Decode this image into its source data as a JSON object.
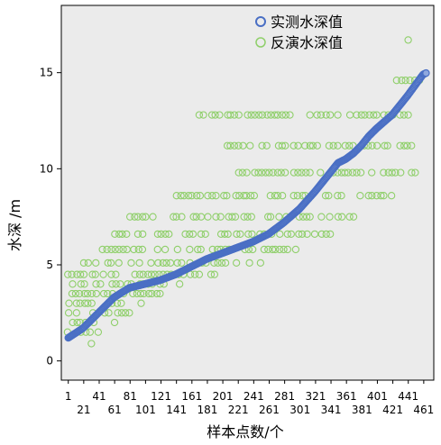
{
  "chart_data": {
    "type": "scatter",
    "xlabel": "样本点数/个",
    "ylabel": "水深 /m",
    "ylim": [
      -1,
      18.5
    ],
    "xlim": [
      -8,
      474
    ],
    "x_ticks_top": [
      "1",
      "41",
      "81",
      "121",
      "161",
      "201",
      "241",
      "281",
      "321",
      "361",
      "401",
      "441"
    ],
    "x_ticks_bottom": [
      "21",
      "61",
      "101",
      "141",
      "181",
      "221",
      "261",
      "301",
      "341",
      "381",
      "421",
      "461"
    ],
    "y_ticks": [
      "0",
      "5",
      "10",
      "15"
    ],
    "legend_position": "top-center",
    "grid": false,
    "series": [
      {
        "name": "实测水深值",
        "color": "#4a6fc4",
        "curve": [
          [
            1,
            1.2
          ],
          [
            20,
            1.7
          ],
          [
            40,
            2.5
          ],
          [
            60,
            3.3
          ],
          [
            80,
            3.8
          ],
          [
            100,
            4.0
          ],
          [
            120,
            4.2
          ],
          [
            140,
            4.5
          ],
          [
            160,
            4.9
          ],
          [
            180,
            5.3
          ],
          [
            200,
            5.6
          ],
          [
            220,
            5.9
          ],
          [
            240,
            6.2
          ],
          [
            260,
            6.6
          ],
          [
            280,
            7.2
          ],
          [
            300,
            7.9
          ],
          [
            320,
            8.8
          ],
          [
            340,
            9.8
          ],
          [
            350,
            10.3
          ],
          [
            360,
            10.5
          ],
          [
            370,
            10.8
          ],
          [
            380,
            11.2
          ],
          [
            390,
            11.7
          ],
          [
            400,
            12.1
          ],
          [
            420,
            12.8
          ],
          [
            440,
            13.8
          ],
          [
            460,
            14.9
          ],
          [
            465,
            15.0
          ]
        ]
      },
      {
        "name": "反演水深值",
        "color": "#8fcf6a",
        "levels": [
          [
            1.5,
            1,
            40
          ],
          [
            2.0,
            1,
            60
          ],
          [
            2.5,
            1,
            80
          ],
          [
            3.0,
            1,
            100
          ],
          [
            3.5,
            1,
            120
          ],
          [
            4.0,
            1,
            150
          ],
          [
            4.5,
            1,
            190
          ],
          [
            5.1,
            21,
            260
          ],
          [
            5.8,
            41,
            300
          ],
          [
            6.6,
            61,
            340
          ],
          [
            7.5,
            81,
            370
          ],
          [
            8.6,
            141,
            420
          ],
          [
            9.8,
            221,
            461
          ],
          [
            11.2,
            201,
            461
          ],
          [
            12.8,
            171,
            441
          ],
          [
            14.6,
            421,
            461
          ],
          [
            16.7,
            441,
            441
          ],
          [
            0.9,
            31,
            31
          ]
        ]
      }
    ]
  }
}
